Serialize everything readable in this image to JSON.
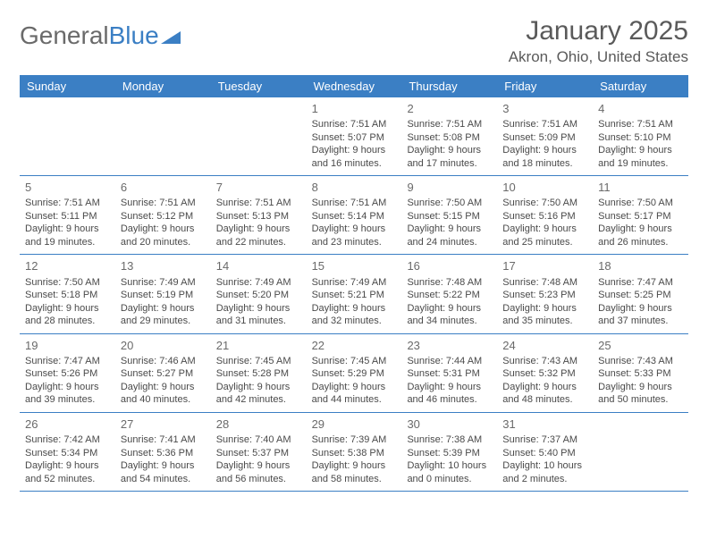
{
  "logo": {
    "part1": "General",
    "part2": "Blue"
  },
  "title": "January 2025",
  "location": "Akron, Ohio, United States",
  "colors": {
    "header_bg": "#3b7fc4",
    "header_text": "#ffffff",
    "text": "#4a4a4a",
    "title_text": "#5a5a5a",
    "logo_gray": "#6a6a6a",
    "logo_blue": "#3b7fc4",
    "border": "#3b7fc4",
    "background": "#ffffff"
  },
  "fonts": {
    "title_size": 30,
    "location_size": 17,
    "dayhead_size": 13,
    "daynum_size": 13,
    "body_size": 11
  },
  "day_headers": [
    "Sunday",
    "Monday",
    "Tuesday",
    "Wednesday",
    "Thursday",
    "Friday",
    "Saturday"
  ],
  "weeks": [
    [
      {
        "day": "",
        "sunrise": "",
        "sunset": "",
        "daylight": ""
      },
      {
        "day": "",
        "sunrise": "",
        "sunset": "",
        "daylight": ""
      },
      {
        "day": "",
        "sunrise": "",
        "sunset": "",
        "daylight": ""
      },
      {
        "day": "1",
        "sunrise": "Sunrise: 7:51 AM",
        "sunset": "Sunset: 5:07 PM",
        "daylight": "Daylight: 9 hours and 16 minutes."
      },
      {
        "day": "2",
        "sunrise": "Sunrise: 7:51 AM",
        "sunset": "Sunset: 5:08 PM",
        "daylight": "Daylight: 9 hours and 17 minutes."
      },
      {
        "day": "3",
        "sunrise": "Sunrise: 7:51 AM",
        "sunset": "Sunset: 5:09 PM",
        "daylight": "Daylight: 9 hours and 18 minutes."
      },
      {
        "day": "4",
        "sunrise": "Sunrise: 7:51 AM",
        "sunset": "Sunset: 5:10 PM",
        "daylight": "Daylight: 9 hours and 19 minutes."
      }
    ],
    [
      {
        "day": "5",
        "sunrise": "Sunrise: 7:51 AM",
        "sunset": "Sunset: 5:11 PM",
        "daylight": "Daylight: 9 hours and 19 minutes."
      },
      {
        "day": "6",
        "sunrise": "Sunrise: 7:51 AM",
        "sunset": "Sunset: 5:12 PM",
        "daylight": "Daylight: 9 hours and 20 minutes."
      },
      {
        "day": "7",
        "sunrise": "Sunrise: 7:51 AM",
        "sunset": "Sunset: 5:13 PM",
        "daylight": "Daylight: 9 hours and 22 minutes."
      },
      {
        "day": "8",
        "sunrise": "Sunrise: 7:51 AM",
        "sunset": "Sunset: 5:14 PM",
        "daylight": "Daylight: 9 hours and 23 minutes."
      },
      {
        "day": "9",
        "sunrise": "Sunrise: 7:50 AM",
        "sunset": "Sunset: 5:15 PM",
        "daylight": "Daylight: 9 hours and 24 minutes."
      },
      {
        "day": "10",
        "sunrise": "Sunrise: 7:50 AM",
        "sunset": "Sunset: 5:16 PM",
        "daylight": "Daylight: 9 hours and 25 minutes."
      },
      {
        "day": "11",
        "sunrise": "Sunrise: 7:50 AM",
        "sunset": "Sunset: 5:17 PM",
        "daylight": "Daylight: 9 hours and 26 minutes."
      }
    ],
    [
      {
        "day": "12",
        "sunrise": "Sunrise: 7:50 AM",
        "sunset": "Sunset: 5:18 PM",
        "daylight": "Daylight: 9 hours and 28 minutes."
      },
      {
        "day": "13",
        "sunrise": "Sunrise: 7:49 AM",
        "sunset": "Sunset: 5:19 PM",
        "daylight": "Daylight: 9 hours and 29 minutes."
      },
      {
        "day": "14",
        "sunrise": "Sunrise: 7:49 AM",
        "sunset": "Sunset: 5:20 PM",
        "daylight": "Daylight: 9 hours and 31 minutes."
      },
      {
        "day": "15",
        "sunrise": "Sunrise: 7:49 AM",
        "sunset": "Sunset: 5:21 PM",
        "daylight": "Daylight: 9 hours and 32 minutes."
      },
      {
        "day": "16",
        "sunrise": "Sunrise: 7:48 AM",
        "sunset": "Sunset: 5:22 PM",
        "daylight": "Daylight: 9 hours and 34 minutes."
      },
      {
        "day": "17",
        "sunrise": "Sunrise: 7:48 AM",
        "sunset": "Sunset: 5:23 PM",
        "daylight": "Daylight: 9 hours and 35 minutes."
      },
      {
        "day": "18",
        "sunrise": "Sunrise: 7:47 AM",
        "sunset": "Sunset: 5:25 PM",
        "daylight": "Daylight: 9 hours and 37 minutes."
      }
    ],
    [
      {
        "day": "19",
        "sunrise": "Sunrise: 7:47 AM",
        "sunset": "Sunset: 5:26 PM",
        "daylight": "Daylight: 9 hours and 39 minutes."
      },
      {
        "day": "20",
        "sunrise": "Sunrise: 7:46 AM",
        "sunset": "Sunset: 5:27 PM",
        "daylight": "Daylight: 9 hours and 40 minutes."
      },
      {
        "day": "21",
        "sunrise": "Sunrise: 7:45 AM",
        "sunset": "Sunset: 5:28 PM",
        "daylight": "Daylight: 9 hours and 42 minutes."
      },
      {
        "day": "22",
        "sunrise": "Sunrise: 7:45 AM",
        "sunset": "Sunset: 5:29 PM",
        "daylight": "Daylight: 9 hours and 44 minutes."
      },
      {
        "day": "23",
        "sunrise": "Sunrise: 7:44 AM",
        "sunset": "Sunset: 5:31 PM",
        "daylight": "Daylight: 9 hours and 46 minutes."
      },
      {
        "day": "24",
        "sunrise": "Sunrise: 7:43 AM",
        "sunset": "Sunset: 5:32 PM",
        "daylight": "Daylight: 9 hours and 48 minutes."
      },
      {
        "day": "25",
        "sunrise": "Sunrise: 7:43 AM",
        "sunset": "Sunset: 5:33 PM",
        "daylight": "Daylight: 9 hours and 50 minutes."
      }
    ],
    [
      {
        "day": "26",
        "sunrise": "Sunrise: 7:42 AM",
        "sunset": "Sunset: 5:34 PM",
        "daylight": "Daylight: 9 hours and 52 minutes."
      },
      {
        "day": "27",
        "sunrise": "Sunrise: 7:41 AM",
        "sunset": "Sunset: 5:36 PM",
        "daylight": "Daylight: 9 hours and 54 minutes."
      },
      {
        "day": "28",
        "sunrise": "Sunrise: 7:40 AM",
        "sunset": "Sunset: 5:37 PM",
        "daylight": "Daylight: 9 hours and 56 minutes."
      },
      {
        "day": "29",
        "sunrise": "Sunrise: 7:39 AM",
        "sunset": "Sunset: 5:38 PM",
        "daylight": "Daylight: 9 hours and 58 minutes."
      },
      {
        "day": "30",
        "sunrise": "Sunrise: 7:38 AM",
        "sunset": "Sunset: 5:39 PM",
        "daylight": "Daylight: 10 hours and 0 minutes."
      },
      {
        "day": "31",
        "sunrise": "Sunrise: 7:37 AM",
        "sunset": "Sunset: 5:40 PM",
        "daylight": "Daylight: 10 hours and 2 minutes."
      },
      {
        "day": "",
        "sunrise": "",
        "sunset": "",
        "daylight": ""
      }
    ]
  ]
}
